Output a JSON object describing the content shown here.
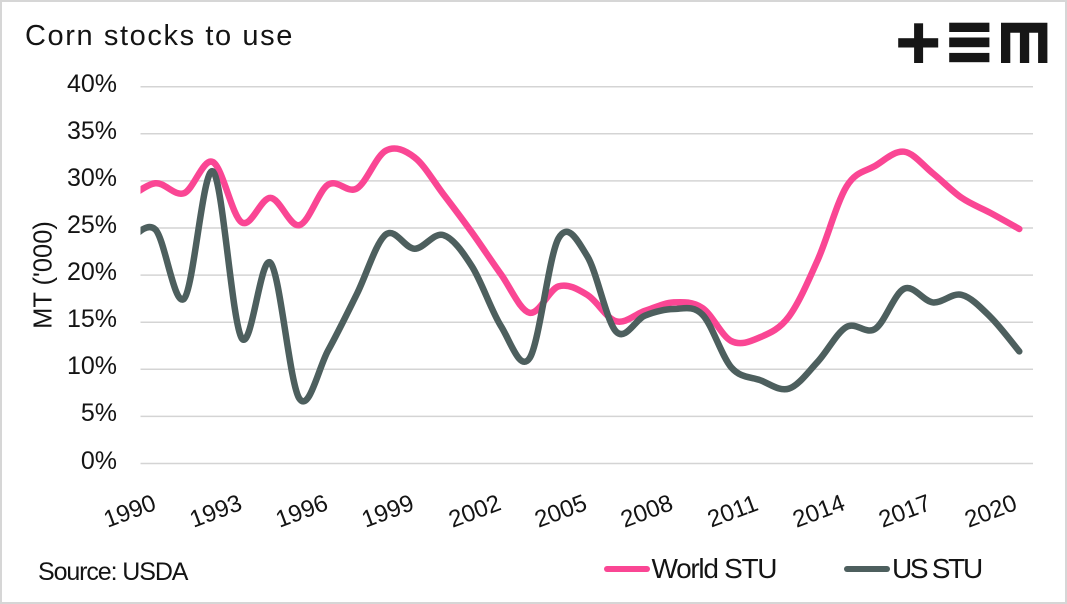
{
  "title": "Corn stocks to use",
  "source_note": "Source: USDA",
  "logo": {
    "name": "plus-triple-bar-m logo",
    "color": "#161616"
  },
  "colors": {
    "world_stu": "#fa4694",
    "us_stu": "#4d5f5e",
    "gridline": "#d4d4d4",
    "text": "#141414"
  },
  "legend": [
    {
      "label": "World STU",
      "color": "#fa4694"
    },
    {
      "label": "US STU",
      "color": "#4d5f5e"
    }
  ],
  "chart_data": {
    "type": "line",
    "title": "Corn stocks to use",
    "xlabel": "",
    "ylabel": "MT ('000)",
    "x_tick_labels": [
      "1990",
      "1993",
      "1996",
      "1999",
      "2002",
      "2005",
      "2008",
      "2011",
      "2014",
      "2017",
      "2020"
    ],
    "y_tick_labels": [
      "0%",
      "5%",
      "10%",
      "15%",
      "20%",
      "25%",
      "30%",
      "35%",
      "40%"
    ],
    "ylim": [
      0,
      40
    ],
    "xlim": [
      1990,
      2021
    ],
    "grid": "horizontal",
    "legend_position": "bottom",
    "line_shape": "spline",
    "x": [
      1990,
      1991,
      1992,
      1993,
      1994,
      1995,
      1996,
      1997,
      1998,
      1999,
      2000,
      2001,
      2002,
      2003,
      2004,
      2005,
      2006,
      2007,
      2008,
      2009,
      2010,
      2011,
      2012,
      2013,
      2014,
      2015,
      2016,
      2017,
      2018,
      2019,
      2020,
      2021
    ],
    "series": [
      {
        "name": "World STU",
        "color": "#fa4694",
        "values": [
          28.0,
          29.75,
          28.7,
          32.0,
          25.6,
          28.2,
          25.3,
          29.6,
          29.2,
          33.2,
          32.5,
          28.6,
          24.5,
          20.1,
          16.0,
          18.8,
          17.9,
          15.1,
          16.2,
          17.1,
          16.5,
          13.0,
          13.4,
          15.6,
          21.6,
          29.4,
          31.6,
          33.1,
          30.8,
          28.2,
          26.6,
          24.9
        ]
      },
      {
        "name": "US STU",
        "color": "#4d5f5e",
        "values": [
          23.4,
          24.85,
          17.5,
          31.0,
          13.3,
          21.3,
          6.9,
          12.0,
          18.0,
          24.3,
          22.8,
          24.25,
          20.9,
          14.6,
          11.2,
          23.9,
          22.0,
          14.0,
          15.7,
          16.4,
          15.8,
          10.2,
          8.85,
          7.95,
          10.8,
          14.5,
          14.3,
          18.55,
          17.1,
          17.9,
          15.55,
          11.9
        ]
      }
    ]
  }
}
